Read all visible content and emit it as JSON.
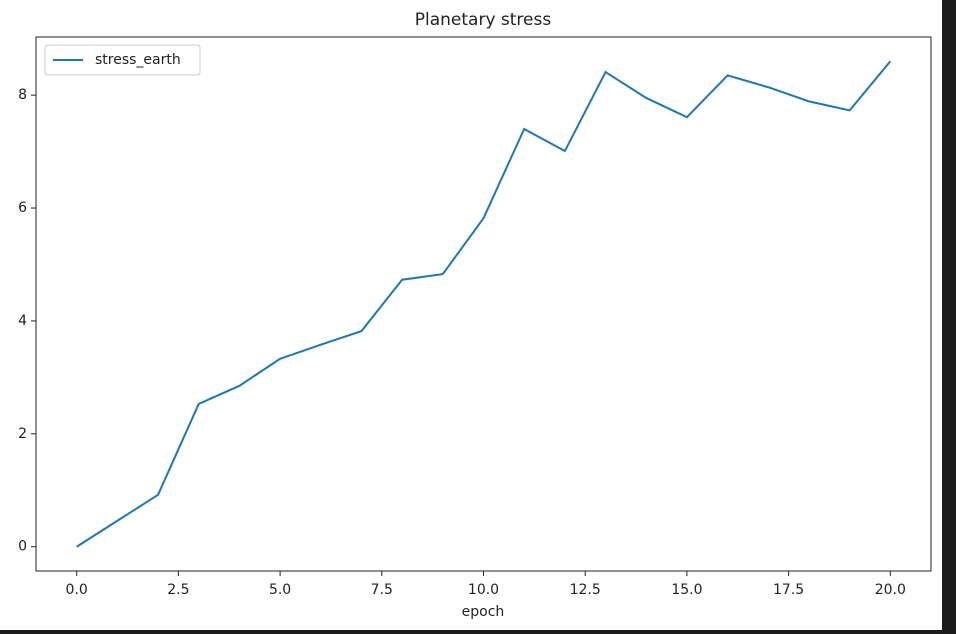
{
  "chart_data": {
    "type": "line",
    "title": "Planetary stress",
    "x_label": "epoch",
    "x": [
      0,
      1,
      2,
      3,
      4,
      5,
      6,
      7,
      8,
      9,
      10,
      11,
      12,
      13,
      14,
      15,
      16,
      17,
      18,
      19,
      20
    ],
    "series": [
      {
        "name": "stress_earth",
        "color": "#1f77b4",
        "values": [
          0,
          0.46,
          0.92,
          2.53,
          2.85,
          3.33,
          3.58,
          3.82,
          4.73,
          4.83,
          5.82,
          7.4,
          7.01,
          8.41,
          7.95,
          7.61,
          8.35,
          8.14,
          7.89,
          7.73,
          8.6
        ]
      }
    ],
    "xlim": [
      -1,
      21
    ],
    "xticks": [
      {
        "value": 0,
        "label": "0.0"
      },
      2.5,
      {
        "value": 5,
        "label": "5.0"
      },
      7.5,
      {
        "value": 10,
        "label": "10.0"
      },
      12.5,
      {
        "value": 15,
        "label": "15.0"
      },
      17.5,
      {
        "value": 20,
        "label": "20.0"
      }
    ],
    "ylim": [
      -0.43,
      9.03
    ],
    "yticks": [
      0,
      2,
      4,
      6,
      8
    ],
    "grid": false,
    "legend": "upper-left"
  }
}
